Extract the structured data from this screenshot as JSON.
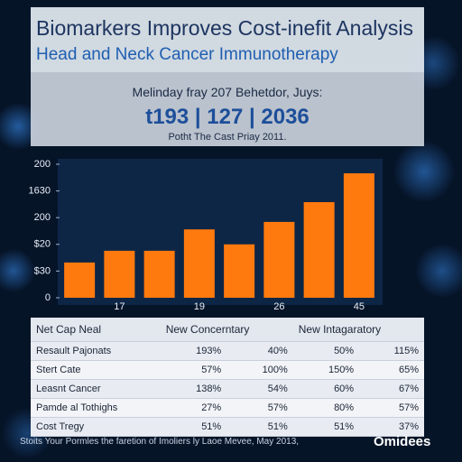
{
  "header": {
    "title": "Biomarkers Improves Cost-inefit Analysis",
    "subtitle": "Head and Neck Cancer Immunotherapy"
  },
  "stats": {
    "caption": "Melinday fray 207 Behetdor, Juys:",
    "figures": "t193 | 127 | 2036",
    "note": "Potht The Cast Priay 2011."
  },
  "chart_data": {
    "type": "bar",
    "categories": [
      null,
      "17",
      null,
      "19",
      null,
      "26",
      null,
      "45"
    ],
    "values": [
      66,
      88,
      88,
      128,
      100,
      142,
      179,
      233
    ],
    "color": "#ff7a0e",
    "ylim": [
      0,
      250
    ],
    "yticks": [
      0,
      {
        "value": 50,
        "label": "$30"
      },
      {
        "value": 100,
        "label": "$20"
      },
      {
        "value": 150,
        "label": "200"
      },
      {
        "value": 200,
        "label": "1630"
      },
      {
        "value": 250,
        "label": "200"
      }
    ],
    "grid": false
  },
  "table": {
    "header": [
      "Net Cap Neal",
      "New Concerntary",
      "New Intagaratory"
    ],
    "rows": [
      [
        "Resault Pajonats",
        "193%",
        "40%",
        "50%",
        "115%"
      ],
      [
        "Stert Cate",
        "57%",
        "100%",
        "150%",
        "65%"
      ],
      [
        "Leasnt Cancer",
        "138%",
        "54%",
        "60%",
        "67%"
      ],
      [
        "Pamde al Tothighs",
        "27%",
        "57%",
        "80%",
        "57%"
      ],
      [
        "Cost Tregy",
        "51%",
        "51%",
        "51%",
        "37%"
      ]
    ]
  },
  "footer": {
    "source": "Stoits Your Pormles the faretion of Imoliers ly Laoe Mevee, May 2013,",
    "logo": "Omidees"
  }
}
